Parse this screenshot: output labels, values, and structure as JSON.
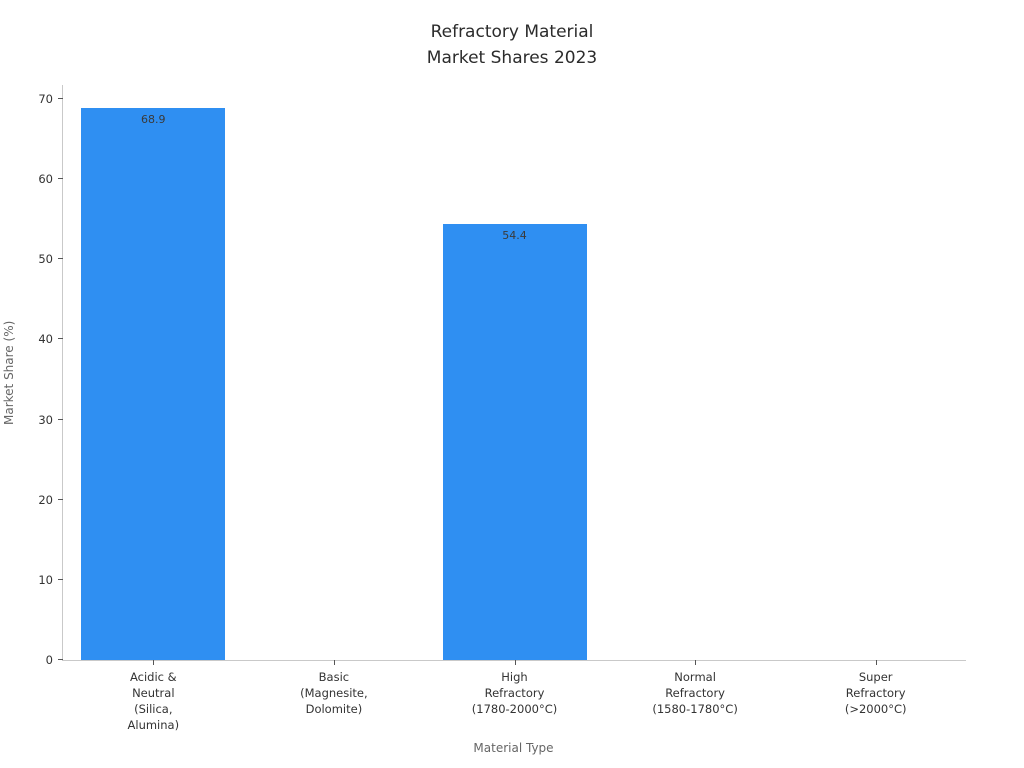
{
  "chart_data": {
    "type": "bar",
    "title": "Refractory Material\nMarket Shares 2023",
    "xlabel": "Material Type",
    "ylabel": "Market Share (%)",
    "categories": [
      "Acidic &\nNeutral\n(Silica,\nAlumina)",
      "Basic\n(Magnesite,\nDolomite)",
      "High\nRefractory\n(1780-2000°C)",
      "Normal\nRefractory\n(1580-1780°C)",
      "Super\nRefractory\n(>2000°C)"
    ],
    "values": [
      68.9,
      0,
      54.4,
      0,
      0
    ],
    "value_labels": [
      "68.9",
      "",
      "54.4",
      "",
      ""
    ],
    "ylim": [
      0,
      70
    ],
    "yticks": [
      0,
      10,
      20,
      30,
      40,
      50,
      60,
      70
    ],
    "bar_color": "#2f8ff2",
    "grid": "off",
    "legend": "none"
  }
}
